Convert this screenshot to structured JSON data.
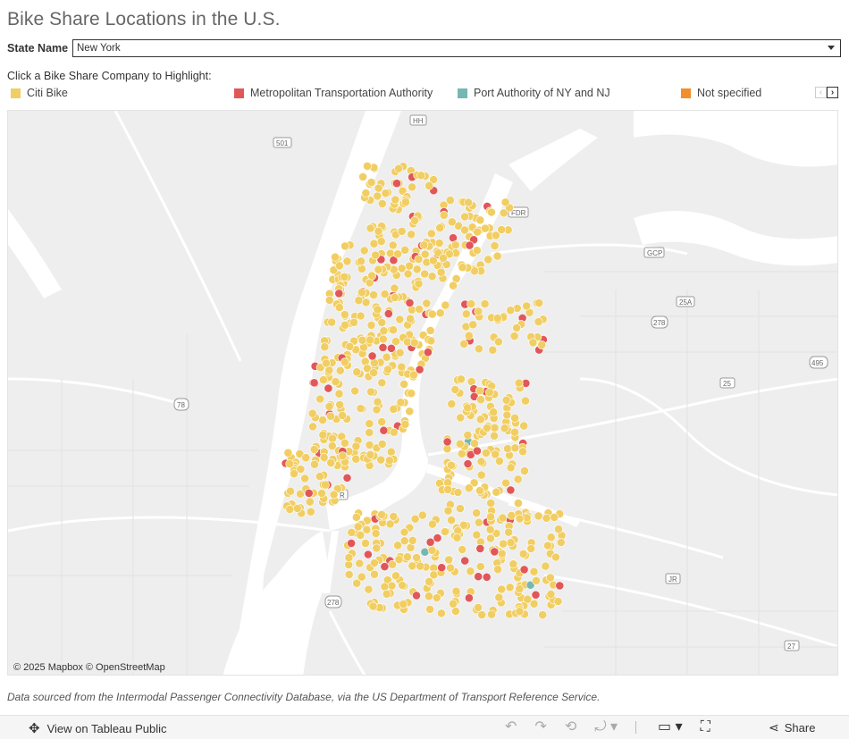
{
  "title": "Bike Share Locations in the U.S.",
  "filter": {
    "label": "State Name",
    "value": "New York"
  },
  "legend": {
    "title": "Click a Bike Share Company to Highlight:",
    "items": [
      {
        "label": "Citi Bike",
        "color": "#f1ce63"
      },
      {
        "label": "Metropolitan Transportation Authority",
        "color": "#e15759"
      },
      {
        "label": "Port Authority of NY and NJ",
        "color": "#76b7b2"
      },
      {
        "label": "Not specified",
        "color": "#f28e2b"
      }
    ],
    "prev_icon": "chevron-left-icon",
    "next_icon": "chevron-right-icon"
  },
  "map": {
    "attribution": "© 2025 Mapbox  © OpenStreetMap",
    "road_shields": [
      "HH",
      "501",
      "FDR",
      "GCP",
      "25A",
      "278",
      "495",
      "25",
      "78",
      "R",
      "278",
      "JR",
      "27"
    ],
    "water_color": "#ffffff",
    "land_color": "#eeeeee"
  },
  "footnote": "Data sourced from the Intermodal Passenger Connectivity Database, via the US Department of Transport Reference Service.",
  "toolbar": {
    "view_label": "View on Tableau Public",
    "share_label": "Share",
    "icons": [
      "undo-icon",
      "redo-icon",
      "revert-icon",
      "refresh-icon",
      "comment-icon",
      "fullscreen-icon",
      "share-icon"
    ]
  }
}
